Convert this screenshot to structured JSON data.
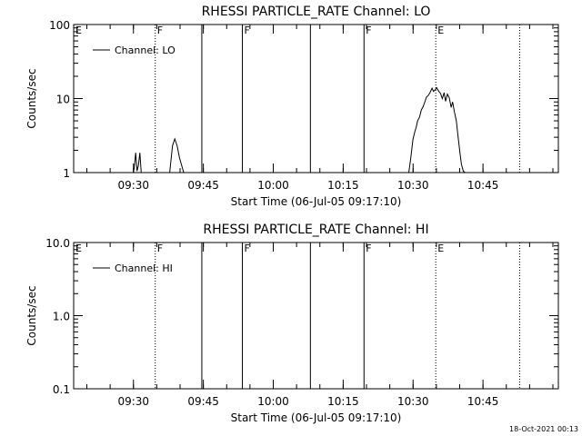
{
  "chart_data": [
    {
      "type": "line",
      "title": "RHESSI PARTICLE_RATE Channel: LO",
      "xlabel": "Start Time (06-Jul-05 09:17:10)",
      "ylabel": "Counts/sec",
      "yscale": "log",
      "ylim": [
        1,
        100
      ],
      "ytick_labels": [
        "1",
        "10",
        "100"
      ],
      "xlim_minutes_after_start": [
        0,
        104
      ],
      "xtick_labels": [
        "09:30",
        "09:45",
        "10:00",
        "10:15",
        "10:30",
        "10:45"
      ],
      "xtick_minutes_after_start": [
        12.83,
        27.83,
        42.83,
        57.83,
        72.83,
        87.83
      ],
      "grid": false,
      "legend": {
        "position": "top-left",
        "entries": [
          "Channel: LO"
        ]
      },
      "event_markers": [
        {
          "label": "E",
          "minute": 0,
          "style": "none"
        },
        {
          "label": "F",
          "minute": 17.5,
          "style": "dotted"
        },
        {
          "label": "",
          "minute": 27.5,
          "style": "solid"
        },
        {
          "label": "F",
          "minute": 36.2,
          "style": "solid"
        },
        {
          "label": "",
          "minute": 50.8,
          "style": "solid"
        },
        {
          "label": "F",
          "minute": 62.3,
          "style": "solid"
        },
        {
          "label": "E",
          "minute": 77.7,
          "style": "dotted"
        },
        {
          "label": "",
          "minute": 95.7,
          "style": "dotted"
        }
      ],
      "series": [
        {
          "name": "Channel: LO",
          "segments": [
            {
              "x": [
                12.8,
                13.0,
                13.3,
                13.6,
                13.9,
                14.2,
                14.5
              ],
              "y": [
                1,
                1.15,
                1.85,
                1.05,
                1.25,
                1.85,
                1
              ]
            },
            {
              "x": [
                20.6,
                21.2,
                21.7,
                22.2,
                22.7,
                23.6
              ],
              "y": [
                1,
                2.3,
                2.85,
                2.3,
                1.6,
                1
              ]
            },
            {
              "x": [
                71.9,
                72.3,
                72.8,
                73.2,
                73.5,
                73.8,
                74.2,
                74.6,
                75.0,
                75.4,
                75.7,
                76.1,
                76.5,
                76.9,
                77.2,
                77.6,
                77.9,
                78.3,
                78.7,
                79.1,
                79.5,
                79.8,
                80.2,
                80.6,
                81.0,
                81.3,
                81.7,
                82.1,
                82.5,
                82.9,
                83.2,
                83.6,
                84.0
              ],
              "y": [
                1,
                1.5,
                2.8,
                3.6,
                4.1,
                5.0,
                5.6,
                7.0,
                7.8,
                9.2,
                10.5,
                11.0,
                12.2,
                13.8,
                12.5,
                13.2,
                14.0,
                12.6,
                11.8,
                10.0,
                12.0,
                9.2,
                11.5,
                10.2,
                7.6,
                9.0,
                6.6,
                5.0,
                3.0,
                1.8,
                1.3,
                1.05,
                1
              ]
            }
          ]
        }
      ]
    },
    {
      "type": "line",
      "title": "RHESSI PARTICLE_RATE Channel: HI",
      "xlabel": "Start Time (06-Jul-05 09:17:10)",
      "ylabel": "Counts/sec",
      "yscale": "log",
      "ylim": [
        0.1,
        10
      ],
      "ytick_labels": [
        "0.1",
        "1.0",
        "10.0"
      ],
      "xlim_minutes_after_start": [
        0,
        104
      ],
      "xtick_labels": [
        "09:30",
        "09:45",
        "10:00",
        "10:15",
        "10:30",
        "10:45"
      ],
      "xtick_minutes_after_start": [
        12.83,
        27.83,
        42.83,
        57.83,
        72.83,
        87.83
      ],
      "grid": false,
      "legend": {
        "position": "top-left",
        "entries": [
          "Channel: HI"
        ]
      },
      "event_markers": [
        {
          "label": "E",
          "minute": 0,
          "style": "none"
        },
        {
          "label": "F",
          "minute": 17.5,
          "style": "dotted"
        },
        {
          "label": "",
          "minute": 27.5,
          "style": "solid"
        },
        {
          "label": "F",
          "minute": 36.2,
          "style": "solid"
        },
        {
          "label": "",
          "minute": 50.8,
          "style": "solid"
        },
        {
          "label": "F",
          "minute": 62.3,
          "style": "solid"
        },
        {
          "label": "E",
          "minute": 77.7,
          "style": "dotted"
        },
        {
          "label": "",
          "minute": 95.7,
          "style": "dotted"
        }
      ],
      "series": [
        {
          "name": "Channel: HI",
          "segments": []
        }
      ]
    }
  ],
  "footer": {
    "timestamp": "18-Oct-2021 00:13"
  }
}
